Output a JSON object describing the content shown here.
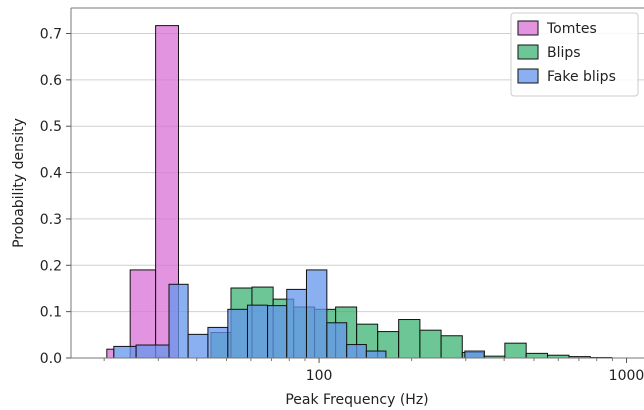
{
  "chart_data": {
    "type": "bar",
    "subtype": "histogram",
    "title": "",
    "xlabel": "Peak Frequency (Hz)",
    "ylabel": "Probability density",
    "xscale": "log",
    "xlim": [
      15.6,
      1140
    ],
    "ylim": [
      0,
      0.755
    ],
    "xticks": [
      {
        "value": 100,
        "label": "100"
      },
      {
        "value": 1000,
        "label": "1000"
      }
    ],
    "yticks": [
      {
        "value": 0.0,
        "label": "0.0"
      },
      {
        "value": 0.1,
        "label": "0.1"
      },
      {
        "value": 0.2,
        "label": "0.2"
      },
      {
        "value": 0.3,
        "label": "0.3"
      },
      {
        "value": 0.4,
        "label": "0.4"
      },
      {
        "value": 0.5,
        "label": "0.5"
      },
      {
        "value": 0.6,
        "label": "0.6"
      },
      {
        "value": 0.7,
        "label": "0.7"
      }
    ],
    "grid": "horizontal",
    "legend_position": "top-right",
    "series": [
      {
        "name": "Blips",
        "color": "#3cb371",
        "bins": [
          {
            "x0": 29.4,
            "x1": 31.9,
            "y": 0.002
          },
          {
            "x0": 44.5,
            "x1": 51.7,
            "y": 0.055
          },
          {
            "x0": 51.7,
            "x1": 60.5,
            "y": 0.151
          },
          {
            "x0": 60.5,
            "x1": 70.9,
            "y": 0.153
          },
          {
            "x0": 70.9,
            "x1": 82.7,
            "y": 0.127
          },
          {
            "x0": 82.7,
            "x1": 96.7,
            "y": 0.11
          },
          {
            "x0": 96.7,
            "x1": 113.2,
            "y": 0.105
          },
          {
            "x0": 113.2,
            "x1": 132.5,
            "y": 0.11
          },
          {
            "x0": 132.5,
            "x1": 155.1,
            "y": 0.073
          },
          {
            "x0": 155.1,
            "x1": 181.5,
            "y": 0.057
          },
          {
            "x0": 181.5,
            "x1": 212.8,
            "y": 0.083
          },
          {
            "x0": 212.8,
            "x1": 249.4,
            "y": 0.06
          },
          {
            "x0": 249.4,
            "x1": 292.3,
            "y": 0.048
          },
          {
            "x0": 292.3,
            "x1": 342.8,
            "y": 0.012
          },
          {
            "x0": 342.8,
            "x1": 402.1,
            "y": 0.004
          },
          {
            "x0": 402.1,
            "x1": 471.7,
            "y": 0.032
          },
          {
            "x0": 471.7,
            "x1": 553.6,
            "y": 0.01
          },
          {
            "x0": 553.6,
            "x1": 650.0,
            "y": 0.006
          },
          {
            "x0": 650.0,
            "x1": 763.0,
            "y": 0.003
          },
          {
            "x0": 763.0,
            "x1": 896.0,
            "y": 0.001
          }
        ]
      },
      {
        "name": "Tomtes",
        "color": "#da70d6",
        "bins": [
          {
            "x0": 20.4,
            "x1": 21.5,
            "y": 0.019
          },
          {
            "x0": 24.3,
            "x1": 29.4,
            "y": 0.19
          },
          {
            "x0": 29.4,
            "x1": 34.9,
            "y": 0.717
          }
        ]
      },
      {
        "name": "Fake blips",
        "color": "#6495ed",
        "bins": [
          {
            "x0": 21.5,
            "x1": 25.4,
            "y": 0.025
          },
          {
            "x0": 25.4,
            "x1": 32.5,
            "y": 0.028
          },
          {
            "x0": 32.5,
            "x1": 37.5,
            "y": 0.159
          },
          {
            "x0": 37.5,
            "x1": 43.5,
            "y": 0.051
          },
          {
            "x0": 43.5,
            "x1": 50.5,
            "y": 0.066
          },
          {
            "x0": 50.5,
            "x1": 58.5,
            "y": 0.105
          },
          {
            "x0": 58.5,
            "x1": 68.0,
            "y": 0.114
          },
          {
            "x0": 68.0,
            "x1": 78.5,
            "y": 0.113
          },
          {
            "x0": 78.5,
            "x1": 91.0,
            "y": 0.148
          },
          {
            "x0": 91.0,
            "x1": 106.0,
            "y": 0.19
          },
          {
            "x0": 106.0,
            "x1": 123.0,
            "y": 0.076
          },
          {
            "x0": 123.0,
            "x1": 142.5,
            "y": 0.029
          },
          {
            "x0": 142.5,
            "x1": 165.0,
            "y": 0.015
          },
          {
            "x0": 165.0,
            "x1": 191.0,
            "y": 0.0
          },
          {
            "x0": 191.0,
            "x1": 221.5,
            "y": 0.0
          },
          {
            "x0": 221.5,
            "x1": 257.0,
            "y": 0.0
          },
          {
            "x0": 257.0,
            "x1": 298.0,
            "y": 0.0
          },
          {
            "x0": 298.0,
            "x1": 345.0,
            "y": 0.015
          }
        ]
      }
    ],
    "legend": [
      {
        "name": "Tomtes",
        "color": "#da70d6"
      },
      {
        "name": "Blips",
        "color": "#3cb371"
      },
      {
        "name": "Fake blips",
        "color": "#6495ed"
      }
    ]
  }
}
